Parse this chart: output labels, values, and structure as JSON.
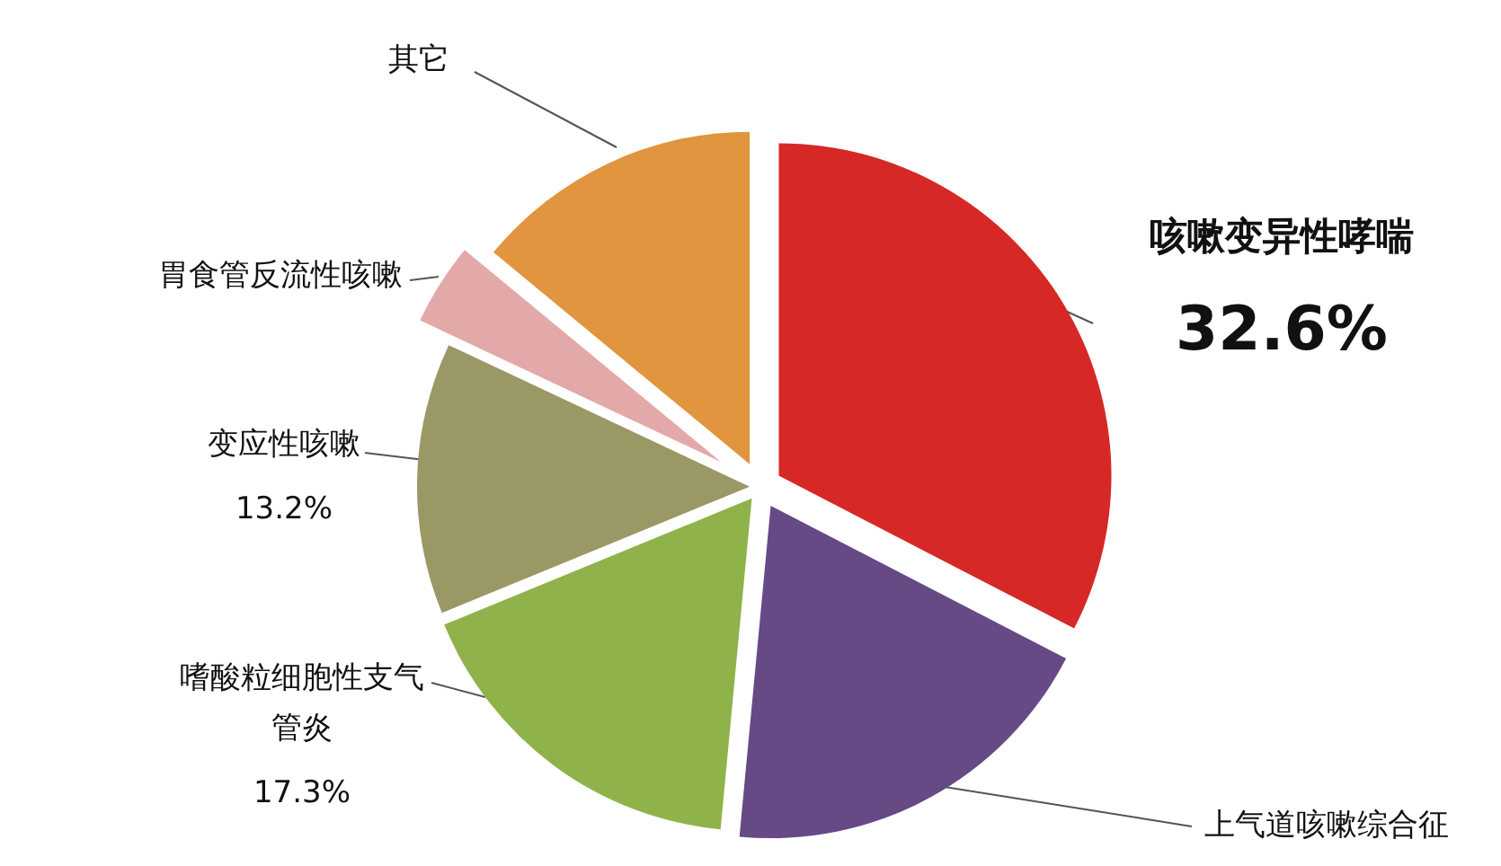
{
  "chart_data": {
    "type": "pie",
    "categories": [
      "咳嗽变异性哮喘",
      "上气道咳嗽综合征",
      "嗜酸粒细胞性支气管炎",
      "变应性咳嗽",
      "胃食管反流性咳嗽",
      "其它"
    ],
    "values": [
      32.6,
      18.9,
      17.3,
      13.2,
      4,
      14
    ],
    "value_labels": [
      "32.6%",
      null,
      "17.3%",
      "13.2%",
      null,
      null
    ],
    "colors": [
      "#d62826",
      "#654a86",
      "#8fb24a",
      "#9a9865",
      "#e3a9a9",
      "#e0953e"
    ]
  }
}
